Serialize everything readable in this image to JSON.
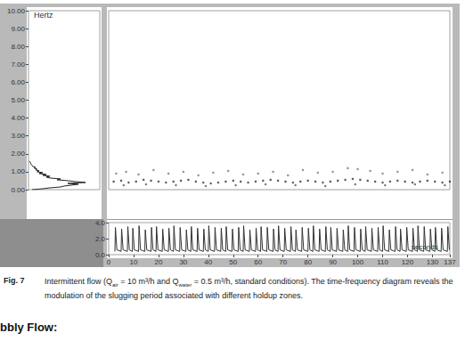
{
  "chart_data": [
    {
      "type": "line",
      "orientation": "horizontal",
      "ylabel": "Hertz",
      "y": [
        0,
        0.05,
        0.1,
        0.15,
        0.2,
        0.25,
        0.3,
        0.35,
        0.4,
        0.45,
        0.5,
        0.55,
        0.6,
        0.65,
        0.7,
        0.75,
        0.8,
        0.85,
        0.9,
        0.95,
        1.0,
        1.05,
        1.1,
        1.15,
        1.2,
        1.25,
        1.3,
        1.35,
        1.4,
        1.45,
        1.5,
        1.55,
        1.6
      ],
      "values": [
        0.05,
        0.2,
        0.3,
        0.45,
        0.5,
        0.6,
        0.7,
        0.55,
        0.8,
        0.65,
        0.55,
        0.4,
        0.45,
        0.3,
        0.25,
        0.3,
        0.2,
        0.25,
        0.15,
        0.2,
        0.12,
        0.15,
        0.1,
        0.12,
        0.08,
        0.1,
        0.06,
        0.05,
        0.04,
        0.03,
        0.03,
        0.02,
        0.01
      ],
      "color": "#222222",
      "xlim": [
        0,
        1
      ],
      "ylim": [
        0,
        10
      ],
      "yticks": [
        {
          "value": 0,
          "label": "0.00"
        },
        {
          "value": 1,
          "label": "1.00"
        },
        {
          "value": 2,
          "label": "2.00"
        },
        {
          "value": 3,
          "label": "3.00"
        },
        {
          "value": 4,
          "label": "4.00"
        },
        {
          "value": 5,
          "label": "5.00"
        },
        {
          "value": 6,
          "label": "6.00"
        },
        {
          "value": 7,
          "label": "7.00"
        },
        {
          "value": 8,
          "label": "8.00"
        },
        {
          "value": 9,
          "label": "9.00"
        },
        {
          "value": 10,
          "label": "10.00"
        }
      ],
      "tick_labels": "y",
      "grid": false
    },
    {
      "type": "scatter",
      "xlim": [
        0,
        137
      ],
      "ylim": [
        0,
        10
      ],
      "tick_labels": false,
      "grid": false,
      "marker": "circle",
      "series": [
        {
          "color": "#333333",
          "x": [
            2,
            5,
            8,
            11,
            14,
            17,
            20,
            23,
            26,
            29,
            32,
            35,
            38,
            41,
            44,
            47,
            50,
            53,
            56,
            59,
            62,
            65,
            68,
            71,
            74,
            77,
            80,
            83,
            86,
            89,
            92,
            95,
            98,
            101,
            104,
            107,
            110,
            113,
            116,
            119,
            122,
            125,
            128,
            131,
            134,
            137
          ],
          "values": [
            0.45,
            0.5,
            0.4,
            0.45,
            0.55,
            0.5,
            0.45,
            0.4,
            0.45,
            0.5,
            0.55,
            0.45,
            0.4,
            0.35,
            0.4,
            0.45,
            0.5,
            0.45,
            0.4,
            0.45,
            0.5,
            0.55,
            0.5,
            0.45,
            0.4,
            0.45,
            0.5,
            0.45,
            0.4,
            0.45,
            0.5,
            0.55,
            0.6,
            0.55,
            0.5,
            0.45,
            0.4,
            0.45,
            0.5,
            0.45,
            0.4,
            0.45,
            0.5,
            0.45,
            0.4,
            0.45
          ]
        },
        {
          "color": "#7a7a7a",
          "x": [
            3,
            7,
            12,
            18,
            24,
            30,
            36,
            42,
            48,
            54,
            60,
            66,
            72,
            78,
            84,
            90,
            96,
            100,
            105,
            110,
            116,
            122,
            128,
            134
          ],
          "values": [
            0.9,
            1.0,
            0.85,
            1.1,
            0.9,
            1.0,
            0.8,
            0.95,
            1.05,
            0.85,
            0.9,
            1.0,
            0.8,
            1.1,
            0.95,
            1.0,
            1.2,
            1.15,
            1.05,
            0.9,
            1.0,
            1.1,
            0.85,
            0.95
          ]
        },
        {
          "color": "#555555",
          "x": [
            6,
            15,
            27,
            39,
            51,
            63,
            75,
            87,
            99,
            111,
            123,
            135
          ],
          "values": [
            0.25,
            0.3,
            0.25,
            0.2,
            0.25,
            0.3,
            0.25,
            0.2,
            0.3,
            0.25,
            0.3,
            0.25
          ]
        }
      ]
    },
    {
      "type": "line",
      "xlabel": "seconds",
      "color": "#333333",
      "grid": false,
      "x": [
        2.5,
        2.7,
        3.3,
        5,
        5.2,
        5.8,
        7.5,
        7.7,
        8.3,
        9.5,
        9.7,
        10.3,
        12,
        12.2,
        12.8,
        14.5,
        14.7,
        15.3,
        17,
        17.2,
        17.8,
        19,
        19.2,
        19.8,
        21.5,
        21.7,
        22.3,
        24,
        24.2,
        24.8,
        26,
        26.2,
        26.8,
        28.5,
        28.7,
        29.3,
        31,
        31.2,
        31.8,
        33,
        33.2,
        33.8,
        35.5,
        35.7,
        36.3,
        38,
        38.2,
        38.8,
        40,
        40.2,
        40.8,
        42.5,
        42.7,
        43.3,
        45,
        45.2,
        45.8,
        47,
        47.2,
        47.8,
        49.5,
        49.7,
        50.3,
        52,
        52.2,
        52.8,
        54,
        54.2,
        54.8,
        56.5,
        56.7,
        57.3,
        59,
        59.2,
        59.8,
        61,
        61.2,
        61.8,
        63.5,
        63.7,
        64.3,
        66,
        66.2,
        66.8,
        68,
        68.2,
        68.8,
        70.5,
        70.7,
        71.3,
        73,
        73.2,
        73.8,
        75,
        75.2,
        75.8,
        77.5,
        77.7,
        78.3,
        80,
        80.2,
        80.8,
        82,
        82.2,
        82.8,
        84.5,
        84.7,
        85.3,
        87,
        87.2,
        87.8,
        89,
        89.2,
        89.8,
        91.5,
        91.7,
        92.3,
        94,
        94.2,
        94.8,
        96,
        96.2,
        96.8,
        98.5,
        98.7,
        99.3,
        101,
        101.2,
        101.8,
        103,
        103.2,
        103.8,
        105.5,
        105.7,
        106.3,
        108,
        108.2,
        108.8,
        110,
        110.2,
        110.8,
        112.5,
        112.7,
        113.3,
        115,
        115.2,
        115.8,
        117,
        117.2,
        117.8,
        119.5,
        119.7,
        120.3,
        122,
        122.2,
        122.8,
        124,
        124.2,
        124.8,
        126.5,
        126.7,
        127.3,
        129,
        129.2,
        129.8,
        131,
        131.2,
        131.8,
        133.5,
        133.7,
        134.3,
        136,
        136.2,
        136.8
      ],
      "values": [
        0.4,
        3.4,
        0.6,
        0.4,
        3.2,
        0.6,
        0.4,
        3.5,
        0.6,
        0.4,
        3.3,
        0.6,
        0.4,
        3.6,
        0.6,
        0.4,
        3.1,
        0.6,
        0.4,
        3.4,
        0.6,
        0.4,
        3.5,
        0.6,
        0.4,
        3.2,
        0.6,
        0.4,
        3.3,
        0.6,
        0.4,
        3.6,
        0.6,
        0.4,
        3.4,
        0.6,
        0.4,
        3.1,
        0.6,
        0.4,
        3.5,
        0.6,
        0.4,
        3.3,
        0.6,
        0.4,
        3.2,
        0.6,
        0.4,
        3.6,
        0.6,
        0.4,
        3.4,
        0.6,
        0.4,
        3.3,
        0.6,
        0.4,
        3.5,
        0.6,
        0.4,
        3.2,
        0.6,
        0.4,
        3.4,
        0.6,
        0.4,
        3.6,
        0.6,
        0.4,
        3.1,
        0.6,
        0.4,
        3.3,
        0.6,
        0.4,
        3.5,
        0.6,
        0.4,
        3.4,
        0.6,
        0.4,
        3.2,
        0.6,
        0.4,
        3.6,
        0.6,
        0.4,
        3.3,
        0.6,
        0.4,
        3.5,
        0.6,
        0.4,
        3.1,
        0.6,
        0.4,
        3.4,
        0.6,
        0.4,
        3.3,
        0.6,
        0.4,
        3.6,
        0.6,
        0.4,
        3.2,
        0.6,
        0.4,
        3.5,
        0.6,
        0.4,
        3.4,
        0.6,
        0.4,
        3.3,
        0.6,
        0.4,
        3.1,
        0.6,
        0.4,
        3.6,
        0.6,
        0.4,
        3.4,
        0.6,
        0.4,
        3.2,
        0.6,
        0.4,
        3.5,
        0.6,
        0.4,
        3.3,
        0.6,
        0.4,
        3.4,
        0.6,
        0.4,
        3.6,
        0.6,
        0.4,
        3.1,
        0.6,
        0.4,
        3.5,
        0.6,
        0.4,
        3.2,
        0.6,
        0.4,
        3.4,
        0.6,
        0.4,
        3.3,
        0.6,
        0.4,
        3.6,
        0.6,
        0.4,
        3.5,
        0.6,
        0.4,
        3.2,
        0.6,
        0.4,
        3.4,
        0.6,
        0.4,
        3.3,
        0.6,
        0.4,
        3.5,
        0.6
      ],
      "xlim": [
        0,
        137
      ],
      "xticks": [
        0,
        10,
        20,
        30,
        40,
        50,
        60,
        70,
        80,
        90,
        100,
        110,
        120,
        130,
        137
      ],
      "ylim": [
        0,
        4
      ],
      "yticks": [
        {
          "value": 0,
          "label": "0.0"
        },
        {
          "value": 2,
          "label": "2.0"
        },
        {
          "value": 4,
          "label": "4.0"
        }
      ]
    }
  ],
  "caption": {
    "label": "Fig. 7",
    "parts": [
      {
        "text": "Intermittent flow (Q"
      },
      {
        "sub": "air"
      },
      {
        "text": " = 10 m³/h and Q"
      },
      {
        "sub": "water"
      },
      {
        "text": " = 0.5 m³/h, standard conditions). The time-frequency diagram reveals the modulation of the slugging period associated with different holdup zones."
      }
    ]
  },
  "heading": "bbly Flow:"
}
